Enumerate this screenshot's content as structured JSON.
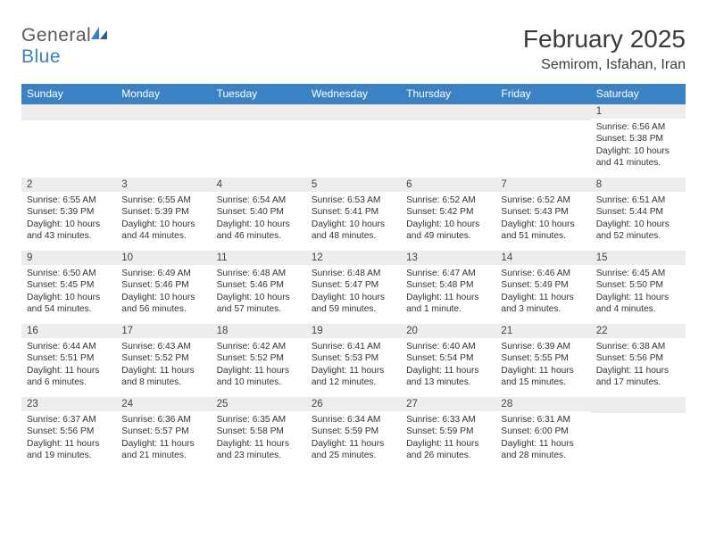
{
  "brand": {
    "name_a": "General",
    "name_b": "Blue"
  },
  "title": "February 2025",
  "location": "Semirom, Isfahan, Iran",
  "colors": {
    "header_bar": "#3b82c4",
    "daynum_bg": "#ededed",
    "text": "#333333",
    "brand_gray": "#5a5a5a",
    "brand_blue": "#3b7fc4"
  },
  "weekdays": [
    "Sunday",
    "Monday",
    "Tuesday",
    "Wednesday",
    "Thursday",
    "Friday",
    "Saturday"
  ],
  "weeks": [
    [
      null,
      null,
      null,
      null,
      null,
      null,
      {
        "n": "1",
        "sr": "6:56 AM",
        "ss": "5:38 PM",
        "dl": "10 hours and 41 minutes."
      }
    ],
    [
      {
        "n": "2",
        "sr": "6:55 AM",
        "ss": "5:39 PM",
        "dl": "10 hours and 43 minutes."
      },
      {
        "n": "3",
        "sr": "6:55 AM",
        "ss": "5:39 PM",
        "dl": "10 hours and 44 minutes."
      },
      {
        "n": "4",
        "sr": "6:54 AM",
        "ss": "5:40 PM",
        "dl": "10 hours and 46 minutes."
      },
      {
        "n": "5",
        "sr": "6:53 AM",
        "ss": "5:41 PM",
        "dl": "10 hours and 48 minutes."
      },
      {
        "n": "6",
        "sr": "6:52 AM",
        "ss": "5:42 PM",
        "dl": "10 hours and 49 minutes."
      },
      {
        "n": "7",
        "sr": "6:52 AM",
        "ss": "5:43 PM",
        "dl": "10 hours and 51 minutes."
      },
      {
        "n": "8",
        "sr": "6:51 AM",
        "ss": "5:44 PM",
        "dl": "10 hours and 52 minutes."
      }
    ],
    [
      {
        "n": "9",
        "sr": "6:50 AM",
        "ss": "5:45 PM",
        "dl": "10 hours and 54 minutes."
      },
      {
        "n": "10",
        "sr": "6:49 AM",
        "ss": "5:46 PM",
        "dl": "10 hours and 56 minutes."
      },
      {
        "n": "11",
        "sr": "6:48 AM",
        "ss": "5:46 PM",
        "dl": "10 hours and 57 minutes."
      },
      {
        "n": "12",
        "sr": "6:48 AM",
        "ss": "5:47 PM",
        "dl": "10 hours and 59 minutes."
      },
      {
        "n": "13",
        "sr": "6:47 AM",
        "ss": "5:48 PM",
        "dl": "11 hours and 1 minute."
      },
      {
        "n": "14",
        "sr": "6:46 AM",
        "ss": "5:49 PM",
        "dl": "11 hours and 3 minutes."
      },
      {
        "n": "15",
        "sr": "6:45 AM",
        "ss": "5:50 PM",
        "dl": "11 hours and 4 minutes."
      }
    ],
    [
      {
        "n": "16",
        "sr": "6:44 AM",
        "ss": "5:51 PM",
        "dl": "11 hours and 6 minutes."
      },
      {
        "n": "17",
        "sr": "6:43 AM",
        "ss": "5:52 PM",
        "dl": "11 hours and 8 minutes."
      },
      {
        "n": "18",
        "sr": "6:42 AM",
        "ss": "5:52 PM",
        "dl": "11 hours and 10 minutes."
      },
      {
        "n": "19",
        "sr": "6:41 AM",
        "ss": "5:53 PM",
        "dl": "11 hours and 12 minutes."
      },
      {
        "n": "20",
        "sr": "6:40 AM",
        "ss": "5:54 PM",
        "dl": "11 hours and 13 minutes."
      },
      {
        "n": "21",
        "sr": "6:39 AM",
        "ss": "5:55 PM",
        "dl": "11 hours and 15 minutes."
      },
      {
        "n": "22",
        "sr": "6:38 AM",
        "ss": "5:56 PM",
        "dl": "11 hours and 17 minutes."
      }
    ],
    [
      {
        "n": "23",
        "sr": "6:37 AM",
        "ss": "5:56 PM",
        "dl": "11 hours and 19 minutes."
      },
      {
        "n": "24",
        "sr": "6:36 AM",
        "ss": "5:57 PM",
        "dl": "11 hours and 21 minutes."
      },
      {
        "n": "25",
        "sr": "6:35 AM",
        "ss": "5:58 PM",
        "dl": "11 hours and 23 minutes."
      },
      {
        "n": "26",
        "sr": "6:34 AM",
        "ss": "5:59 PM",
        "dl": "11 hours and 25 minutes."
      },
      {
        "n": "27",
        "sr": "6:33 AM",
        "ss": "5:59 PM",
        "dl": "11 hours and 26 minutes."
      },
      {
        "n": "28",
        "sr": "6:31 AM",
        "ss": "6:00 PM",
        "dl": "11 hours and 28 minutes."
      },
      null
    ]
  ],
  "labels": {
    "sunrise": "Sunrise:",
    "sunset": "Sunset:",
    "daylight": "Daylight:"
  }
}
